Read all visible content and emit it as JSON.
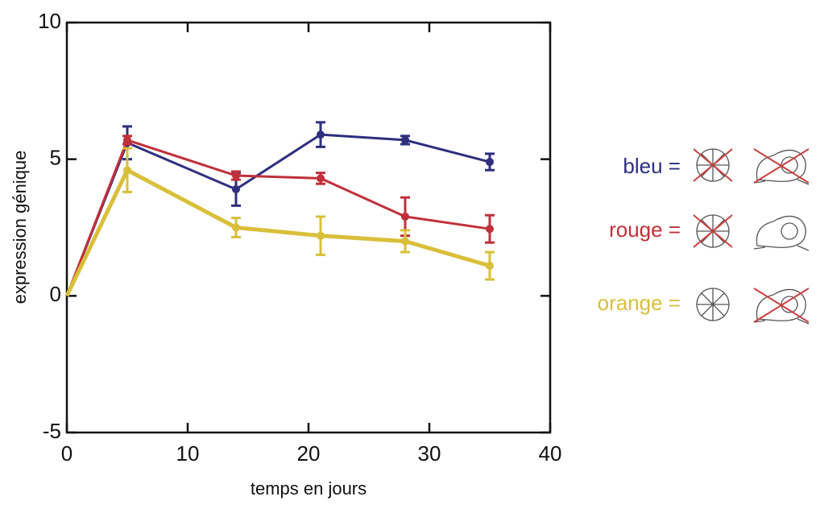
{
  "chart_data": {
    "type": "line",
    "xlabel": "temps en jours",
    "ylabel": "expression génique",
    "x": [
      0,
      5,
      14,
      21,
      28,
      35
    ],
    "xlim": [
      0,
      40
    ],
    "xticks": [
      0,
      10,
      20,
      30,
      40
    ],
    "ylim": [
      -5,
      10
    ],
    "yticks": [
      -5,
      0,
      5,
      10
    ],
    "series": [
      {
        "name": "bleu =",
        "color": "#2e2f7f",
        "width": 3,
        "values": [
          0,
          5.6,
          3.9,
          5.9,
          5.7,
          4.9
        ],
        "errors": [
          null,
          0.6,
          0.6,
          0.45,
          0.15,
          0.3
        ]
      },
      {
        "name": "rouge  =",
        "color": "#c0303a",
        "width": 3,
        "values": [
          0,
          5.7,
          4.4,
          4.3,
          2.9,
          2.45
        ],
        "errors": [
          null,
          0.15,
          0.15,
          0.2,
          0.7,
          0.5
        ]
      },
      {
        "name": "orange =",
        "color": "#d9bf3a",
        "width": 5,
        "values": [
          0,
          4.6,
          2.5,
          2.2,
          2.0,
          1.1
        ],
        "errors": [
          null,
          0.8,
          0.35,
          0.7,
          0.4,
          0.5
        ]
      }
    ]
  }
}
